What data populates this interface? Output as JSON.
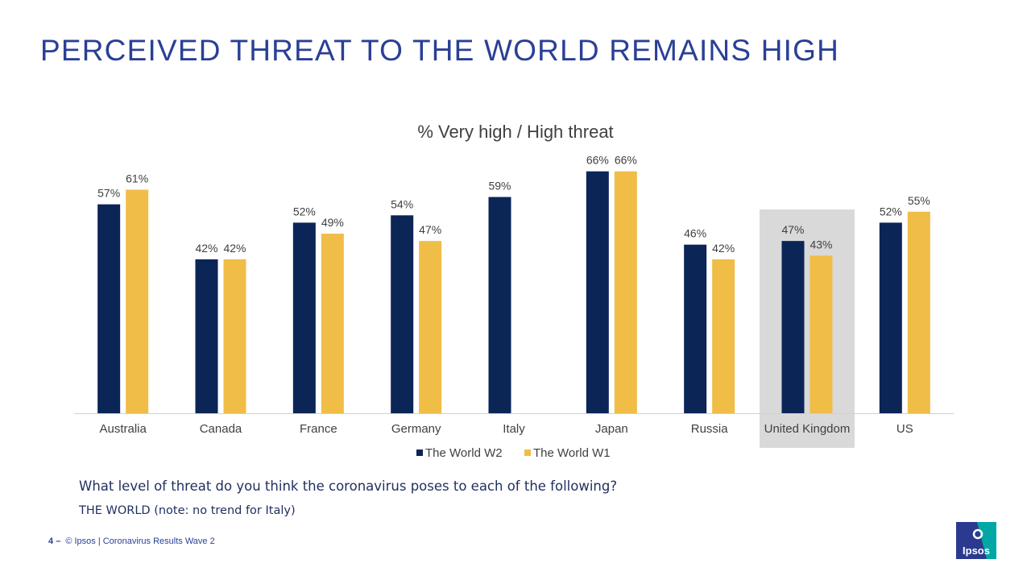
{
  "slide": {
    "title": "PERCEIVED THREAT TO THE WORLD REMAINS HIGH",
    "question": "What level of threat do you think the coronavirus poses to each of the following?",
    "note": "THE WORLD (note: no trend for Italy)",
    "page_number": "4",
    "page_sep": "–",
    "footer_text": "© Ipsos | Coronavirus Results Wave 2",
    "logo_text": "Ipsos"
  },
  "colors": {
    "title": "#2a3f96",
    "w2": "#0b2557",
    "w1": "#f0bd47",
    "highlight": "#d9d9d9",
    "axis": "#d0d0d0",
    "label": "#404040",
    "logo_blue": "#2b3a8f",
    "logo_teal": "#00a7a5"
  },
  "chart_data": {
    "type": "bar",
    "title": "% Very high / High threat",
    "categories": [
      "Australia",
      "Canada",
      "France",
      "Germany",
      "Italy",
      "Japan",
      "Russia",
      "United Kingdom",
      "US"
    ],
    "series": [
      {
        "name": "The World W2",
        "values": [
          57,
          42,
          52,
          54,
          59,
          66,
          46,
          47,
          52
        ]
      },
      {
        "name": "The World W1",
        "values": [
          61,
          42,
          49,
          47,
          null,
          66,
          42,
          43,
          55
        ]
      }
    ],
    "value_suffix": "%",
    "highlight_category": "United Kingdom",
    "ylim": [
      0,
      100
    ],
    "legend_position": "bottom"
  }
}
